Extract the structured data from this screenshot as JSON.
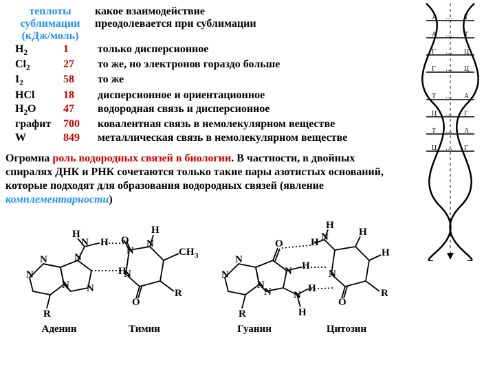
{
  "header": {
    "col1_line1": "теплоты",
    "col1_line2": "сублимации",
    "col1_line3": "(кДж/моль)",
    "col2_line1": "какое взаимодействие",
    "col2_line2": "преодолевается при сублимации"
  },
  "rows": [
    {
      "sub": "H",
      "subn": "2",
      "val": "1",
      "desc": "только дисперсионное"
    },
    {
      "sub": "Cl",
      "subn": "2",
      "val": "27",
      "desc": " то же, но электронов гораздо больше"
    },
    {
      "sub": "I",
      "subn": "2",
      "val": "58",
      "desc": " то же"
    },
    {
      "sub": "HCl",
      "subn": "",
      "val": "18",
      "desc": "дисперсионное  и ориентационное"
    },
    {
      "sub": "H",
      "subn": "2",
      "subpost": "O",
      "val": "47",
      "desc": "водородная связь и дисперсионное"
    },
    {
      "sub": "графит",
      "subn": "",
      "val": "700",
      "desc": "ковалентная связь в немолекулярном веществе"
    },
    {
      "sub": "W",
      "subn": "",
      "val": "849",
      "desc": "металлическая связь в немолекулярном веществе"
    }
  ],
  "para": {
    "t1": "Огромна ",
    "role": "роль водородных связей в биологии",
    "t2": ". В частности, в двойных спиралях ДНК и РНК сочетаются только такие пары азотистых оснований, которые подходят для образования водородных связей (явление ",
    "compl": "комплементарности",
    "t3": ")"
  },
  "mol_labels": {
    "adenine": "Аденин",
    "thymine": "Тимин",
    "guanine": "Гуанин",
    "cytosine": "Цитозин"
  },
  "dna_pairs": [
    "А",
    "Т",
    "А",
    "Т",
    "Г",
    "Ц",
    "Г",
    "Ц",
    "Т",
    "А",
    "Ц",
    "Г",
    "Т",
    "А",
    "Ц",
    "Г"
  ]
}
